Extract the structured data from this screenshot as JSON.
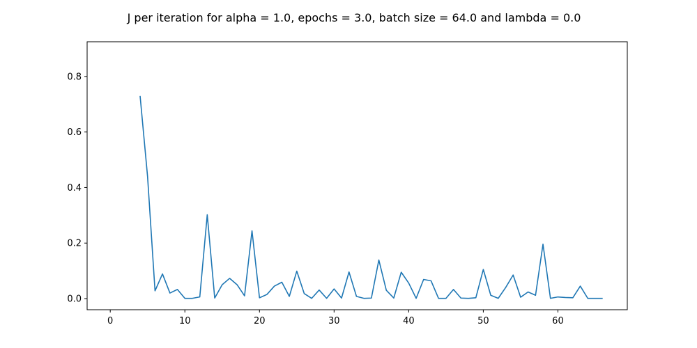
{
  "chart_data": {
    "type": "line",
    "title": "J per iteration for alpha = 1.0, epochs = 3.0, batch size = 64.0 and lambda = 0.0",
    "xlabel": "",
    "ylabel": "",
    "xlim": [
      -3.1,
      69.3
    ],
    "ylim": [
      -0.04,
      0.925
    ],
    "xticks": [
      0,
      10,
      20,
      30,
      40,
      50,
      60
    ],
    "xtick_labels": [
      "0",
      "10",
      "20",
      "30",
      "40",
      "50",
      "60"
    ],
    "yticks": [
      0.0,
      0.2,
      0.4,
      0.6,
      0.8
    ],
    "ytick_labels": [
      "0.0",
      "0.2",
      "0.4",
      "0.6",
      "0.8"
    ],
    "grid": false,
    "series": [
      {
        "color": "#1f77b4",
        "x": [
          4,
          5,
          6,
          7,
          8,
          9,
          10,
          11,
          12,
          13,
          14,
          15,
          16,
          17,
          18,
          19,
          20,
          21,
          22,
          23,
          24,
          25,
          26,
          27,
          28,
          29,
          30,
          31,
          32,
          33,
          34,
          35,
          36,
          37,
          38,
          39,
          40,
          41,
          42,
          43,
          44,
          45,
          46,
          47,
          48,
          49,
          50,
          51,
          52,
          53,
          54,
          55,
          56,
          57,
          58,
          59,
          60,
          61,
          62,
          63,
          64,
          65,
          66
        ],
        "y": [
          0.73,
          0.44,
          0.028,
          0.089,
          0.02,
          0.033,
          0.001,
          0.001,
          0.006,
          0.302,
          0.002,
          0.05,
          0.073,
          0.05,
          0.01,
          0.244,
          0.003,
          0.015,
          0.045,
          0.059,
          0.008,
          0.099,
          0.018,
          0.001,
          0.031,
          0.001,
          0.035,
          0.002,
          0.096,
          0.008,
          0.001,
          0.002,
          0.139,
          0.03,
          0.002,
          0.095,
          0.056,
          0.001,
          0.069,
          0.064,
          0.001,
          0.001,
          0.033,
          0.002,
          0.001,
          0.003,
          0.105,
          0.012,
          0.001,
          0.04,
          0.085,
          0.005,
          0.024,
          0.012,
          0.196,
          0.001,
          0.006,
          0.004,
          0.003,
          0.045,
          0.001,
          0.001,
          0.001
        ]
      }
    ]
  }
}
